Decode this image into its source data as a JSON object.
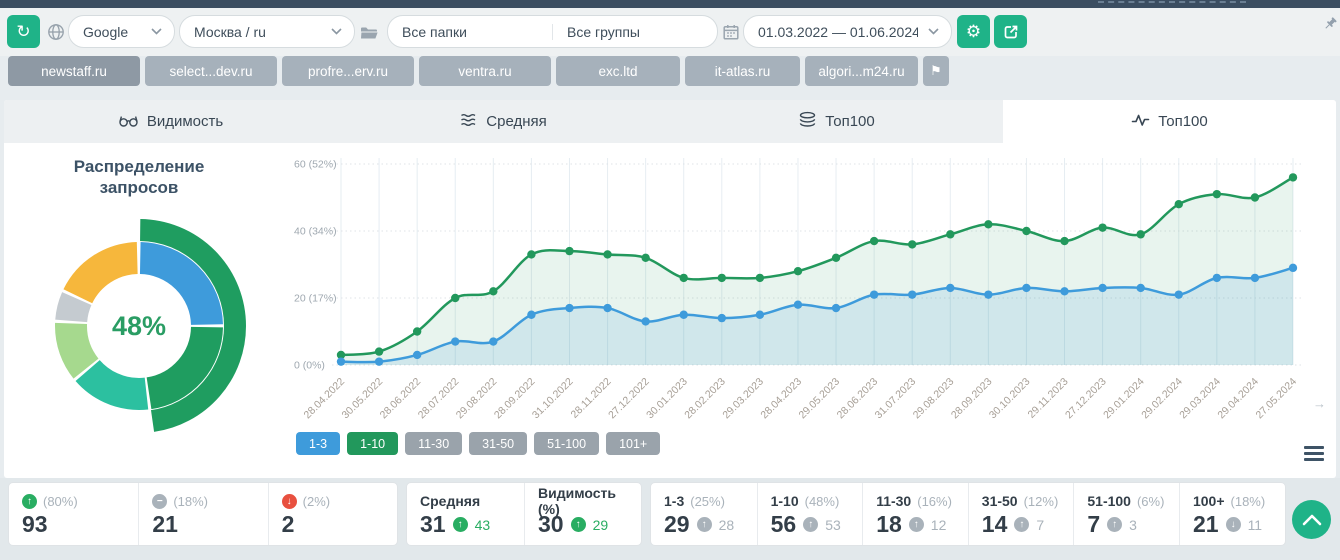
{
  "topbar": {
    "search_engine": "Google",
    "region": "Москва / ru",
    "folders_filter": "Все папки",
    "groups_filter": "Все группы",
    "date_range": "01.03.2022 — 01.06.2024"
  },
  "projects": {
    "active": "newstaff.ru",
    "items": [
      "newstaff.ru",
      "select...dev.ru",
      "profre...erv.ru",
      "ventra.ru",
      "exc.ltd",
      "it-atlas.ru",
      "algori...m24.ru"
    ]
  },
  "tabs": [
    {
      "label": "Видимость",
      "icon": "glasses-icon",
      "active": false
    },
    {
      "label": "Средняя",
      "icon": "average-icon",
      "active": false
    },
    {
      "label": "Топ100",
      "icon": "layers-icon",
      "active": false
    },
    {
      "label": "Топ100",
      "icon": "pulse-icon",
      "active": true
    }
  ],
  "donut": {
    "title": "Распределение запросов",
    "center_label": "48%",
    "segments": [
      {
        "label": "1-3",
        "pct": 25,
        "color": "#3e9bdb"
      },
      {
        "label": "1-10 (beyond 1-3)",
        "pct": 23,
        "color": "#1f9d60"
      },
      {
        "label": "11-30",
        "pct": 16,
        "color": "#2cc0a0"
      },
      {
        "label": "31-50",
        "pct": 12,
        "color": "#a6d98e"
      },
      {
        "label": "51-100",
        "pct": 6,
        "color": "#c5cbd0"
      },
      {
        "label": "100+",
        "pct": 18,
        "color": "#f6b73c"
      }
    ],
    "outer_ring": {
      "label": "1-10",
      "pct": 48,
      "color": "#1f9d60"
    }
  },
  "chart_data": {
    "type": "line",
    "x": [
      "28.04.2022",
      "30.05.2022",
      "28.06.2022",
      "28.07.2022",
      "29.08.2022",
      "28.09.2022",
      "31.10.2022",
      "28.11.2022",
      "27.12.2022",
      "30.01.2023",
      "28.02.2023",
      "29.03.2023",
      "28.04.2023",
      "29.05.2023",
      "28.06.2023",
      "31.07.2023",
      "29.08.2023",
      "28.09.2023",
      "30.10.2023",
      "29.11.2023",
      "27.12.2023",
      "29.01.2024",
      "29.02.2024",
      "29.03.2024",
      "29.04.2024",
      "27.05.2024"
    ],
    "series": [
      {
        "name": "1-10",
        "color": "#22985c",
        "fill": "rgba(34,152,92,0.10)",
        "values": [
          3,
          4,
          10,
          20,
          22,
          33,
          34,
          33,
          32,
          26,
          26,
          26,
          28,
          32,
          37,
          36,
          39,
          42,
          40,
          37,
          41,
          39,
          48,
          51,
          50,
          56
        ]
      },
      {
        "name": "1-3",
        "color": "#3e9bdb",
        "fill": "rgba(62,155,219,0.14)",
        "values": [
          1,
          1,
          3,
          7,
          7,
          15,
          17,
          17,
          13,
          15,
          14,
          15,
          18,
          17,
          21,
          21,
          23,
          21,
          23,
          22,
          23,
          23,
          21,
          26,
          26,
          29
        ]
      }
    ],
    "yticks": [
      {
        "value": 0,
        "label": "0 (0%)"
      },
      {
        "value": 20,
        "label": "20 (17%)"
      },
      {
        "value": 40,
        "label": "40 (34%)"
      },
      {
        "value": 60,
        "label": "60 (52%)"
      }
    ],
    "ylim": [
      0,
      63
    ],
    "grid": "vertical solid, horizontal dotted",
    "legend_position": "bottom"
  },
  "legend": [
    {
      "label": "1-3",
      "color": "#3e9bdb",
      "active": true
    },
    {
      "label": "1-10",
      "color": "#22985c",
      "active": true
    },
    {
      "label": "11-30",
      "color": "#9aa3ab",
      "active": false
    },
    {
      "label": "31-50",
      "color": "#9aa3ab",
      "active": false
    },
    {
      "label": "51-100",
      "color": "#9aa3ab",
      "active": false
    },
    {
      "label": "101+",
      "color": "#9aa3ab",
      "active": false
    }
  ],
  "summary_cards": [
    {
      "icon": "arrow-up-circle-icon",
      "tone": "up",
      "pct": "(80%)",
      "value": "93"
    },
    {
      "icon": "minus-circle-icon",
      "tone": "neutral",
      "pct": "(18%)",
      "value": "21"
    },
    {
      "icon": "arrow-down-circle-icon",
      "tone": "down",
      "pct": "(2%)",
      "value": "2"
    }
  ],
  "metric_cards": [
    {
      "label": "Средняя",
      "value": "31",
      "delta": "43",
      "delta_dir": "up",
      "delta_tone": "green"
    },
    {
      "label": "Видимость (%)",
      "value": "30",
      "delta": "29",
      "delta_dir": "up",
      "delta_tone": "green"
    }
  ],
  "range_cards": [
    {
      "label": "1-3",
      "pct": "(25%)",
      "value": "29",
      "delta": "28",
      "delta_dir": "up"
    },
    {
      "label": "1-10",
      "pct": "(48%)",
      "value": "56",
      "delta": "53",
      "delta_dir": "up"
    },
    {
      "label": "11-30",
      "pct": "(16%)",
      "value": "18",
      "delta": "12",
      "delta_dir": "up"
    },
    {
      "label": "31-50",
      "pct": "(12%)",
      "value": "14",
      "delta": "7",
      "delta_dir": "up"
    },
    {
      "label": "51-100",
      "pct": "(6%)",
      "value": "7",
      "delta": "3",
      "delta_dir": "up"
    },
    {
      "label": "100+",
      "pct": "(18%)",
      "value": "21",
      "delta": "11",
      "delta_dir": "down"
    }
  ],
  "colors": {
    "accent_green": "#1fb388",
    "line_green": "#22985c",
    "line_blue": "#3e9bdb",
    "up_green": "#29ad62",
    "down_red": "#e8503f",
    "neutral_gray": "#a9b2ba",
    "donut_center_green": "#2a9d64"
  }
}
